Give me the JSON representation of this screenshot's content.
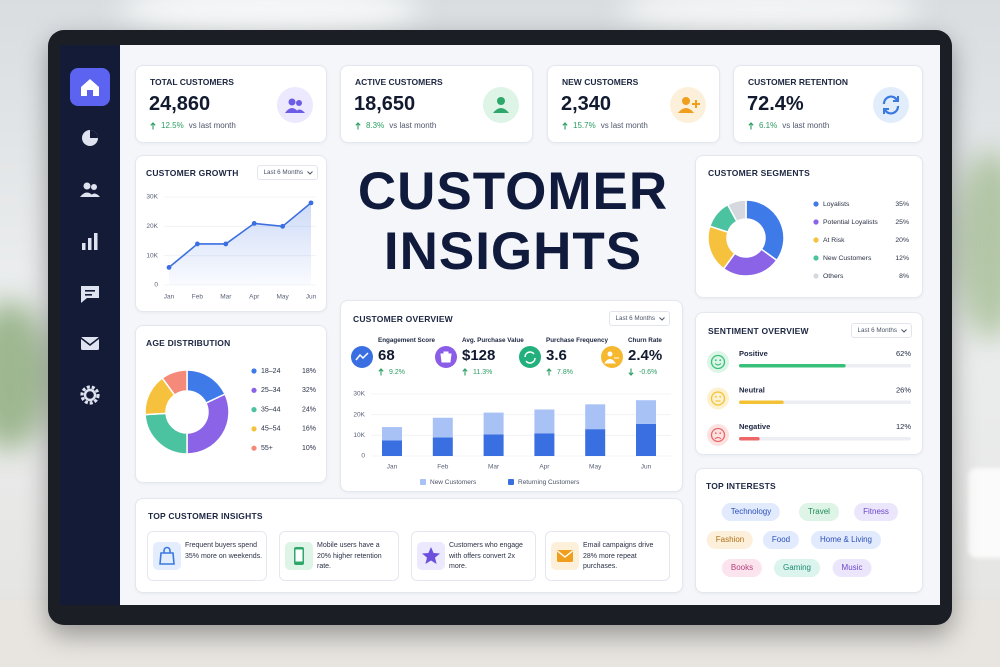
{
  "kpis": [
    {
      "label": "TOTAL CUSTOMERS",
      "value": "24,860",
      "change": "12.5%",
      "note": "vs last month"
    },
    {
      "label": "ACTIVE CUSTOMERS",
      "value": "18,650",
      "change": "8.3%",
      "note": "vs last month"
    },
    {
      "label": "NEW CUSTOMERS",
      "value": "2,340",
      "change": "15.7%",
      "note": "vs last month"
    },
    {
      "label": "CUSTOMER RETENTION",
      "value": "72.4%",
      "change": "6.1%",
      "note": "vs last month"
    }
  ],
  "title": "CUSTOMER INSIGHTS",
  "customer_growth": {
    "type": "line",
    "title": "CUSTOMER GROWTH",
    "period": "Last 6 Months",
    "categories": [
      "Jan",
      "Feb",
      "Mar",
      "Apr",
      "May",
      "Jun"
    ],
    "values": [
      6000,
      14000,
      14000,
      21000,
      20000,
      28000
    ],
    "color": "#3b6fe0",
    "ylim": [
      0,
      30000
    ],
    "yticks": [
      0,
      {
        "value": 10000,
        "label": "10K"
      },
      {
        "value": 20000,
        "label": "20K"
      },
      {
        "value": 30000,
        "label": "30K"
      }
    ]
  },
  "age_distribution": {
    "type": "pie",
    "title": "AGE DISTRIBUTION",
    "categories": [
      "18–24",
      "25–34",
      "35–44",
      "45–54",
      "55+"
    ],
    "values": [
      18,
      32,
      24,
      16,
      10
    ],
    "value_labels": [
      "18%",
      "32%",
      "24%",
      "16%",
      "10%"
    ],
    "colors": [
      "#3f7be8",
      "#8a63e6",
      "#4cc3a0",
      "#f6c23e",
      "#f58a7a"
    ]
  },
  "customer_overview": {
    "title": "CUSTOMER OVERVIEW",
    "period": "Last 6 Months",
    "metrics": [
      {
        "label": "Engagement Score",
        "value": "68",
        "change": "9.2%"
      },
      {
        "label": "Avg. Purchase Value",
        "value": "$128",
        "change": "11.3%"
      },
      {
        "label": "Purchase Frequency",
        "value": "3.6",
        "change": "7.8%"
      },
      {
        "label": "Churn Rate",
        "value": "2.4%",
        "change": "-0.6%"
      }
    ],
    "chart": {
      "type": "bar",
      "stacked": true,
      "categories": [
        "Jan",
        "Feb",
        "Mar",
        "Apr",
        "May",
        "Jun"
      ],
      "series": [
        {
          "name": "New Customers",
          "color": "#a8c2f6",
          "values": [
            6500,
            9500,
            10500,
            11500,
            12000,
            11500
          ]
        },
        {
          "name": "Returning Customers",
          "color": "#3a6fe2",
          "values": [
            7500,
            9000,
            10500,
            11000,
            13000,
            15500
          ]
        }
      ],
      "ylim": [
        0,
        30000
      ],
      "yticks": [
        0,
        {
          "value": 10000,
          "label": "10K"
        },
        {
          "value": 20000,
          "label": "20K"
        },
        {
          "value": 30000,
          "label": "30K"
        }
      ]
    }
  },
  "customer_segments": {
    "type": "pie",
    "title": "CUSTOMER SEGMENTS",
    "categories": [
      "Loyalists",
      "Potential Loyalists",
      "At Risk",
      "New Customers",
      "Others"
    ],
    "values": [
      35,
      25,
      20,
      12,
      8
    ],
    "value_labels": [
      "35%",
      "25%",
      "20%",
      "12%",
      "8%"
    ],
    "colors": [
      "#3f7be8",
      "#8a63e6",
      "#f6c23e",
      "#4cc3a0",
      "#d5d8de"
    ]
  },
  "sentiment": {
    "type": "bar",
    "title": "SENTIMENT OVERVIEW",
    "period": "Last 6 Months",
    "categories": [
      "Positive",
      "Neutral",
      "Negative"
    ],
    "values": [
      62,
      26,
      12
    ],
    "value_labels": [
      "62%",
      "26%",
      "12%"
    ],
    "colors": [
      "#36c07a",
      "#f3c234",
      "#ee6767"
    ],
    "xlim": [
      0,
      100
    ]
  },
  "top_customer_insights": {
    "title": "TOP CUSTOMER INSIGHTS",
    "items": [
      "Frequent buyers spend 35% more on weekends.",
      "Mobile users have a 20% higher retention rate.",
      "Customers who engage with offers convert 2x more.",
      "Email campaigns drive 28% more repeat purchases."
    ]
  },
  "top_interests": {
    "title": "TOP INTERESTS",
    "tags": [
      "Technology",
      "Travel",
      "Fitness",
      "Fashion",
      "Food",
      "Home & Living",
      "Books",
      "Gaming",
      "Music"
    ]
  }
}
